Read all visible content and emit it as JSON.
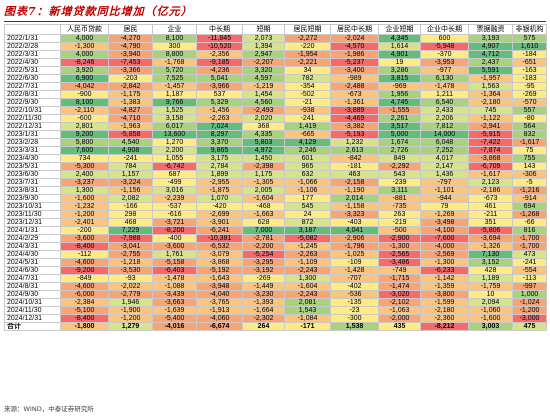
{
  "title": "图表7：新增贷款同比增加（亿元）",
  "headers": [
    "",
    "人民币贷款",
    "居民",
    "企业",
    "中长期",
    "短期",
    "居民短期",
    "居民中长期",
    "企业短期",
    "企业中长期",
    "票据融资",
    "非银机构"
  ],
  "rows": [
    [
      "2022/1/31",
      "4,000",
      "-4,270",
      "8,100",
      "-11,845",
      "2,073",
      "-2,272",
      "-2,024",
      "4,345",
      "600",
      "3,193",
      "575"
    ],
    [
      "2022/2/28",
      "-1,300",
      "-4,790",
      "300",
      "-10,520",
      "1,394",
      "-220",
      "-4,570",
      "1,614",
      "-5,948",
      "4,907",
      "1,610"
    ],
    [
      "2022/3/31",
      "4,000",
      "-3,940",
      "8,800",
      "-2,356",
      "2,947",
      "-1,954",
      "-1,986",
      "4,901",
      "-370",
      "4,712",
      "-184"
    ],
    [
      "2022/4/30",
      "-8,246",
      "-7,453",
      "-1,768",
      "-9,185",
      "-2,207",
      "-2,221",
      "-5,237",
      "19",
      "-3,953",
      "2,437",
      "-651"
    ],
    [
      "2022/5/31",
      "3,920",
      "-3,366",
      "5,720",
      "-4,236",
      "3,320",
      "34",
      "-3,400",
      "3,286",
      "-977",
      "5,591",
      "-163"
    ],
    [
      "2022/6/30",
      "6,900",
      "-203",
      "7,525",
      "5,041",
      "4,597",
      "782",
      "-989",
      "3,815",
      "6,130",
      "-1,957",
      "-183"
    ],
    [
      "2022/7/31",
      "-4,042",
      "-2,842",
      "-1,457",
      "-3,966",
      "-1,219",
      "-354",
      "-2,488",
      "-969",
      "-1,478",
      "1,563",
      "-95"
    ],
    [
      "2022/8/31",
      "-900",
      "-1,175",
      "1,187",
      "537",
      "1,454",
      "-502",
      "-673",
      "1,956",
      "1,211",
      "-1,364",
      "-269"
    ],
    [
      "2022/9/30",
      "8,100",
      "-1,383",
      "9,766",
      "5,329",
      "4,560",
      "-21",
      "-1,361",
      "4,745",
      "6,540",
      "-2,180",
      "-570"
    ],
    [
      "2022/10/31",
      "-2,110",
      "-4,827",
      "1,525",
      "-1,456",
      "-2,493",
      "-938",
      "-3,889",
      "-1,555",
      "2,433",
      "745",
      "557"
    ],
    [
      "2022/11/30",
      "-600",
      "-4,710",
      "3,158",
      "-2,263",
      "2,020",
      "-241",
      "-4,469",
      "2,261",
      "2,206",
      "-1,122",
      "-80"
    ],
    [
      "2022/12/31",
      "2,801",
      "-1,963",
      "6,017",
      "7,024",
      "368",
      "1,419",
      "-3,382",
      "3,517",
      "7,812",
      "-2,941",
      "564"
    ],
    [
      "2023/1/31",
      "9,200",
      "-5,858",
      "13,600",
      "8,297",
      "4,335",
      "-665",
      "-5,193",
      "5,000",
      "14,000",
      "-5,915",
      "832"
    ],
    [
      "2023/2/28",
      "5,800",
      "4,540",
      "1,270",
      "3,370",
      "5,803",
      "4,129",
      "1,232",
      "1,674",
      "6,048",
      "-7,422",
      "-1,617"
    ],
    [
      "2023/3/31",
      "7,600",
      "4,908",
      "2,200",
      "9,865",
      "4,972",
      "2,246",
      "2,613",
      "2,726",
      "7,252",
      "-7,874",
      "75"
    ],
    [
      "2023/4/30",
      "734",
      "-241",
      "1,055",
      "3,175",
      "1,450",
      "601",
      "-842",
      "849",
      "4,017",
      "-3,868",
      "755"
    ],
    [
      "2023/5/31",
      "-5,300",
      "784",
      "-6,742",
      "2,784",
      "-2,398",
      "965",
      "-181",
      "-2,292",
      "2,147",
      "-6,709",
      "143"
    ],
    [
      "2023/6/30",
      "2,400",
      "1,157",
      "687",
      "1,899",
      "1,175",
      "632",
      "463",
      "543",
      "1,436",
      "-1,617",
      "-306"
    ],
    [
      "2023/7/31",
      "-3,237",
      "-3,224",
      "-499",
      "-2,955",
      "-1,305",
      "-1,066",
      "-2,158",
      "-239",
      "-797",
      "2,123",
      "-5"
    ],
    [
      "2023/8/31",
      "1,300",
      "-1,156",
      "3,016",
      "-1,875",
      "2,005",
      "-1,106",
      "-1,190",
      "3,111",
      "-1,101",
      "-2,186",
      "-1,216"
    ],
    [
      "2023/9/30",
      "-1,600",
      "2,082",
      "-2,239",
      "1,070",
      "-1,604",
      "177",
      "2,014",
      "-881",
      "-944",
      "-673",
      "-914"
    ],
    [
      "2023/10/31",
      "-1,232",
      "-166",
      "-537",
      "-420",
      "-468",
      "545",
      "-1,158",
      "-735",
      "79",
      "461",
      "694"
    ],
    [
      "2023/11/30",
      "-1,200",
      "298",
      "-616",
      "-2,699",
      "-1,663",
      "24",
      "-3,323",
      "263",
      "-1,269",
      "-211",
      "-1,268"
    ],
    [
      "2023/12/31",
      "-2,401",
      "468",
      "-3,721",
      "-3,901",
      "628",
      "872",
      "-403",
      "-219",
      "-3,498",
      "351",
      "-66"
    ],
    [
      "2024/1/31",
      "-200",
      "7,229",
      "-8,200",
      "-6,241",
      "7,000",
      "3,187",
      "4,041",
      "-500",
      "-4,100",
      "-5,806",
      "816"
    ],
    [
      "2024/2/29",
      "-3,600",
      "-7,988",
      "-400",
      "-10,381",
      "-2,781",
      "-5,082",
      "-2,906",
      "-2,900",
      "-7,600",
      "-3,694",
      "-1,700"
    ],
    [
      "2024/3/31",
      "-8,400",
      "-3,041",
      "-3,600",
      "-6,532",
      "-2,200",
      "-1,245",
      "-1,796",
      "-1,300",
      "-4,000",
      "-1,326",
      "-1,700"
    ],
    [
      "2024/4/30",
      "-112",
      "-2,755",
      "1,761",
      "-3,079",
      "-5,254",
      "-2,263",
      "-1,025",
      "-2,565",
      "-2,569",
      "7,130",
      "473"
    ],
    [
      "2024/5/31",
      "-4,600",
      "-1,218",
      "-5,158",
      "-3,868",
      "-3,295",
      "-1,109",
      "-109",
      "-3,486",
      "-1,300",
      "3,152",
      "-241"
    ],
    [
      "2024/6/30",
      "-9,200",
      "-3,530",
      "-6,403",
      "-5,192",
      "-3,192",
      "-2,243",
      "-1,428",
      "-749",
      "-6,233",
      "428",
      "-554"
    ],
    [
      "2024/7/31",
      "-849",
      "-93",
      "-1,478",
      "-1,643",
      "-269",
      "1,300",
      "-707",
      "-1,715",
      "-1,142",
      "1,189",
      "-113"
    ],
    [
      "2024/8/31",
      "-4,600",
      "-2,022",
      "-1,088",
      "-3,948",
      "-1,449",
      "-1,604",
      "-402",
      "-1,474",
      "-1,359",
      "-1,759",
      "-997"
    ],
    [
      "2024/9/30",
      "-6,000",
      "-2,779",
      "-3,439",
      "-4,040",
      "-3,230",
      "-2,243",
      "-536",
      "-3,020",
      "-3,800",
      "10",
      "1,000"
    ],
    [
      "2024/10/31",
      "-2,384",
      "1,946",
      "-3,663",
      "-3,765",
      "-1,393",
      "2,081",
      "-135",
      "-2,102",
      "-1,599",
      "2,094",
      "-1,024"
    ],
    [
      "2024/11/30",
      "-5,100",
      "-1,900",
      "-1,639",
      "-1,913",
      "-1,664",
      "1,543",
      "-23",
      "-1,063",
      "-2,180",
      "-1,060",
      "-1,200"
    ],
    [
      "2024/12/31",
      "-8,400",
      "-1,200",
      "-5,400",
      "-4,060",
      "-2,302",
      "-1,084",
      "-300",
      "-2,000",
      "-2,360",
      "-1,600",
      "-3,000"
    ],
    [
      "合计",
      "-1,800",
      "1,279",
      "-4,016",
      "-6,674",
      "264",
      "-171",
      "1,538",
      "435",
      "-8,212",
      "3,003",
      "475"
    ]
  ],
  "source": "来源：WIND，中泰证券研究所",
  "colors": {
    "strong_green": "#63be7b",
    "mid_green": "#a9d27f",
    "light_green": "#d6e38a",
    "yellow": "#ffeb84",
    "light_orange": "#fdc47d",
    "orange": "#f8a474",
    "red": "#f8696b"
  }
}
